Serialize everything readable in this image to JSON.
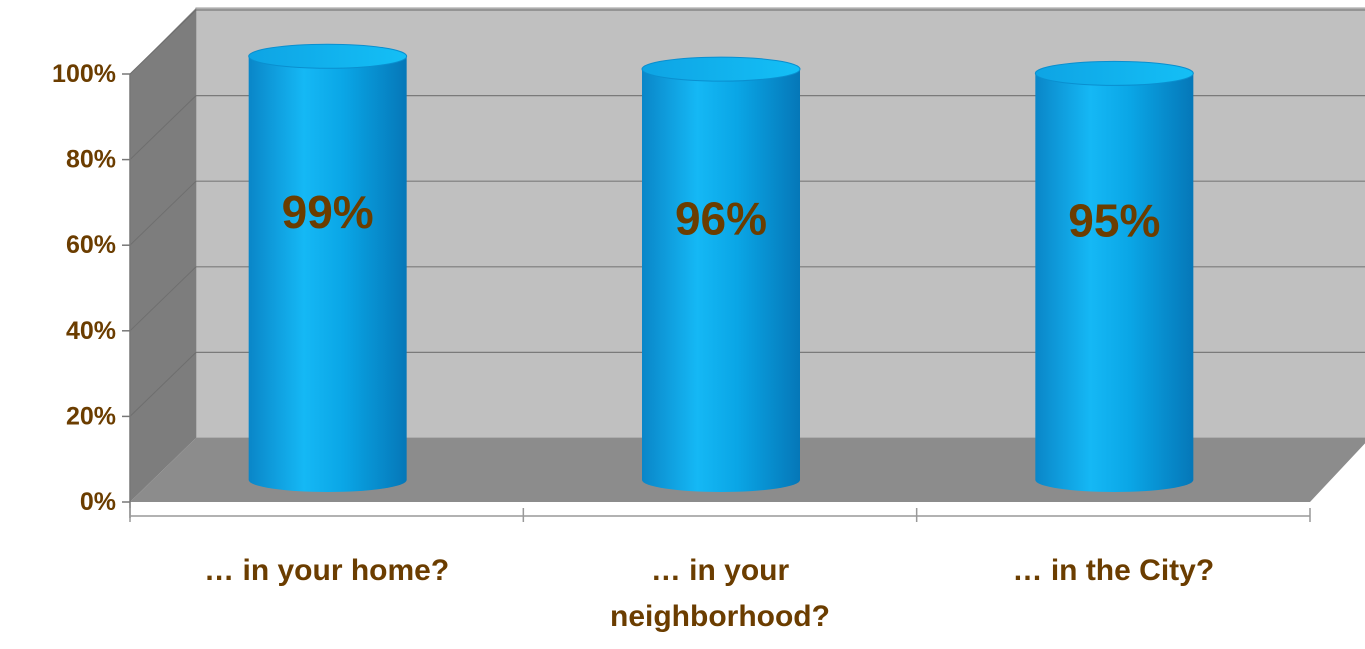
{
  "chart_data": {
    "type": "bar",
    "style": "3d-cylinder",
    "categories": [
      "… in your home?",
      "… in your neighborhood?",
      "… in the City?"
    ],
    "category_lines": [
      [
        "… in your home?"
      ],
      [
        "… in your",
        "neighborhood?"
      ],
      [
        "… in the City?"
      ]
    ],
    "values": [
      99,
      96,
      95
    ],
    "data_labels": [
      "99%",
      "96%",
      "95%"
    ],
    "y_ticks": [
      {
        "value": 0,
        "label": "0%"
      },
      {
        "value": 20,
        "label": "20%"
      },
      {
        "value": 40,
        "label": "40%"
      },
      {
        "value": 60,
        "label": "60%"
      },
      {
        "value": 80,
        "label": "80%"
      },
      {
        "value": 100,
        "label": "100%"
      }
    ],
    "ylim": [
      0,
      100
    ],
    "grid": true,
    "title": "",
    "xlabel": "",
    "ylabel": ""
  },
  "colors": {
    "bar": "#0099d8",
    "bar_top": "#11b9f2",
    "label_text": "#6b3d00",
    "wall": "#c0c0c0",
    "floor": "#8c8c8c",
    "side_wall": "#7d7d7d",
    "gridline": "#7a7a7a"
  }
}
